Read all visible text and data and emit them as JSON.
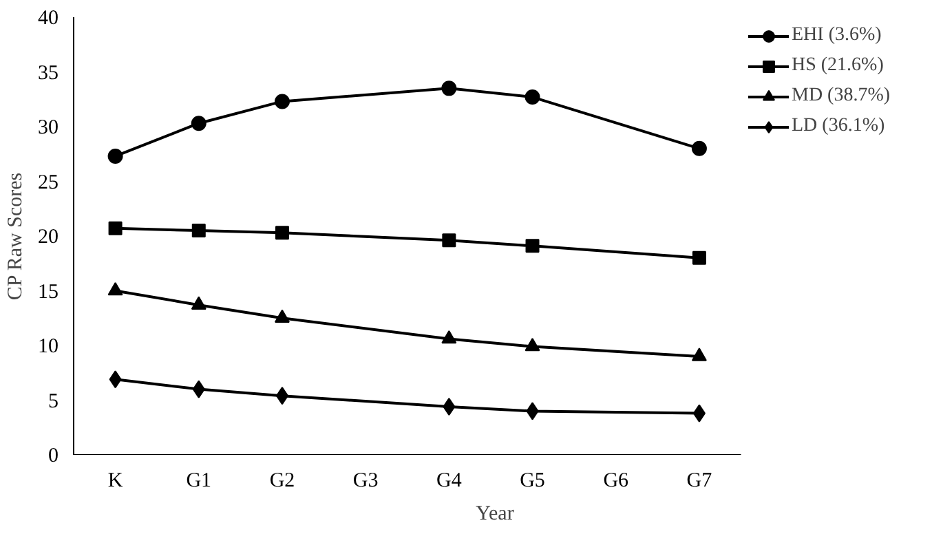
{
  "chart_data": {
    "type": "line",
    "xlabel": "Year",
    "ylabel": "CP Raw Scores",
    "categories": [
      "K",
      "G1",
      "G2",
      "G3",
      "G4",
      "G5",
      "G6",
      "G7"
    ],
    "series": [
      {
        "name": "EHI (3.6%)",
        "color": "#000000",
        "marker": "circle",
        "values": [
          27.3,
          30.3,
          32.3,
          null,
          33.5,
          32.7,
          null,
          28.0
        ]
      },
      {
        "name": "HS (21.6%)",
        "color": "#000000",
        "marker": "square",
        "values": [
          20.7,
          20.5,
          20.3,
          null,
          19.6,
          19.1,
          null,
          18.0
        ]
      },
      {
        "name": "MD (38.7%)",
        "color": "#000000",
        "marker": "triangle",
        "values": [
          15.0,
          13.7,
          12.5,
          null,
          10.6,
          9.9,
          null,
          9.0
        ]
      },
      {
        "name": "LD (36.1%)",
        "color": "#000000",
        "marker": "diamond",
        "values": [
          6.9,
          6.0,
          5.4,
          null,
          4.4,
          4.0,
          null,
          3.8
        ]
      }
    ],
    "ylim": [
      0,
      40
    ],
    "yticks": [
      0,
      5,
      10,
      15,
      20,
      25,
      30,
      35,
      40
    ],
    "grid": false,
    "legend": "top right",
    "line_style": "solid"
  }
}
